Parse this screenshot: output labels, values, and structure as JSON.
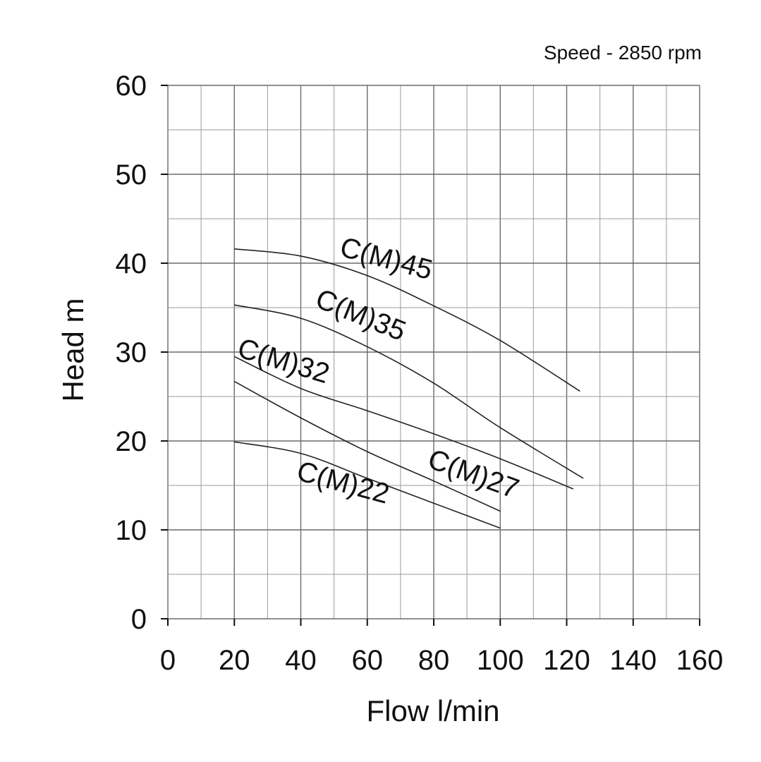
{
  "chart_data": {
    "type": "line",
    "title": "",
    "annotation": "Speed - 2850 rpm",
    "xlabel": "Flow l/min",
    "ylabel": "Head m",
    "xlim": [
      0,
      160
    ],
    "ylim": [
      0,
      60
    ],
    "x_ticks": [
      "0",
      "20",
      "40",
      "60",
      "80",
      "100",
      "120",
      "140",
      "160"
    ],
    "y_ticks": [
      "0",
      "10",
      "20",
      "30",
      "40",
      "50",
      "60"
    ],
    "grid": true,
    "legend": "none",
    "series": [
      {
        "name": "C(M)45",
        "x": [
          20,
          40,
          60,
          80,
          100,
          124
        ],
        "y": [
          41.6,
          40.8,
          38.6,
          35.2,
          31.3,
          25.6
        ],
        "label_at": [
          65,
          39.5
        ],
        "label_angle": 15
      },
      {
        "name": "C(M)35",
        "x": [
          20,
          40,
          60,
          80,
          100,
          125
        ],
        "y": [
          35.3,
          33.8,
          30.6,
          26.5,
          21.5,
          15.8
        ],
        "label_at": [
          57,
          33.2
        ],
        "label_angle": 22
      },
      {
        "name": "C(M)32",
        "x": [
          20,
          40,
          60,
          80,
          100,
          122
        ],
        "y": [
          29.5,
          25.9,
          23.4,
          20.8,
          18.0,
          14.6
        ],
        "label_at": [
          34,
          28.0
        ],
        "label_angle": 17
      },
      {
        "name": "C(M)27",
        "x": [
          20,
          40,
          60,
          80,
          100
        ],
        "y": [
          26.7,
          22.6,
          18.8,
          15.5,
          12.1
        ],
        "label_at": [
          91,
          15.3
        ],
        "label_angle": 20
      },
      {
        "name": "C(M)22",
        "x": [
          20,
          40,
          60,
          80,
          100
        ],
        "y": [
          19.9,
          18.6,
          15.8,
          13.0,
          10.2
        ],
        "label_at": [
          52,
          14.3
        ],
        "label_angle": 15
      }
    ]
  }
}
